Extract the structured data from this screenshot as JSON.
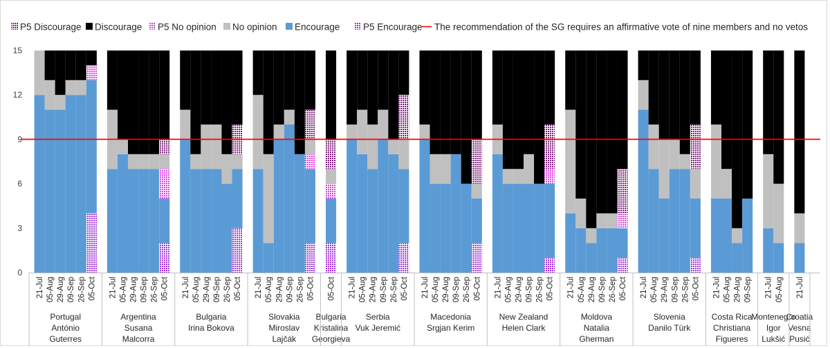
{
  "chart_data": {
    "type": "bar",
    "stacked": true,
    "ylim": [
      0,
      15
    ],
    "yticks": [
      0,
      3,
      6,
      9,
      12,
      15
    ],
    "grid": false,
    "legend_position": "top",
    "threshold": {
      "value": 9,
      "label": "The recommendation of the SG requires an affirmative vote of nine members and no vetos",
      "color": "#ff0000"
    },
    "series": [
      {
        "key": "p5_encourage",
        "name": "P5 Encourage",
        "color": "#a033d6",
        "pattern": true
      },
      {
        "key": "encourage",
        "name": "Encourage",
        "color": "#5b9bd5",
        "pattern": false
      },
      {
        "key": "p5_no_opinion",
        "name": "P5 No opinion",
        "color": "#e03de0",
        "pattern": true
      },
      {
        "key": "no_opinion",
        "name": "No opinion",
        "color": "#c0c0c0",
        "pattern": false
      },
      {
        "key": "p5_discourage",
        "name": "P5 Discourage",
        "color": "#7a1f7a",
        "pattern": true
      },
      {
        "key": "discourage",
        "name": "Discourage",
        "color": "#000000",
        "pattern": false
      }
    ],
    "legend_order": [
      "p5_discourage",
      "discourage",
      "p5_no_opinion",
      "no_opinion",
      "encourage",
      "p5_encourage"
    ],
    "groups": [
      {
        "label": [
          "Portugal",
          "António",
          "Guterres"
        ],
        "polls": [
          {
            "date": "21-Jul",
            "values": [
              0,
              12,
              0,
              3,
              0,
              0
            ]
          },
          {
            "date": "05-Aug",
            "values": [
              0,
              11,
              0,
              2,
              0,
              2
            ]
          },
          {
            "date": "29-Aug",
            "values": [
              0,
              11,
              0,
              1,
              0,
              3
            ]
          },
          {
            "date": "09-Sep",
            "values": [
              0,
              12,
              0,
              1,
              0,
              2
            ]
          },
          {
            "date": "26-Sep",
            "values": [
              0,
              12,
              0,
              1,
              0,
              2
            ]
          },
          {
            "date": "05-Oct",
            "values": [
              4,
              9,
              1,
              0,
              0,
              1
            ]
          }
        ]
      },
      {
        "label": [
          "Argentina",
          "Susana",
          "Malcorra"
        ],
        "polls": [
          {
            "date": "21-Jul",
            "values": [
              0,
              7,
              0,
              4,
              0,
              4
            ]
          },
          {
            "date": "05-Aug",
            "values": [
              0,
              8,
              0,
              1,
              0,
              6
            ]
          },
          {
            "date": "29-Aug",
            "values": [
              0,
              7,
              0,
              1,
              0,
              7
            ]
          },
          {
            "date": "09-Sep",
            "values": [
              0,
              7,
              0,
              1,
              0,
              7
            ]
          },
          {
            "date": "26-Sep",
            "values": [
              0,
              7,
              0,
              1,
              0,
              7
            ]
          },
          {
            "date": "05-Oct",
            "values": [
              2,
              3,
              2,
              1,
              1,
              6
            ]
          }
        ]
      },
      {
        "label": [
          "Bulgaria",
          "Irina Bokova"
        ],
        "polls": [
          {
            "date": "21-Jul",
            "values": [
              0,
              9,
              0,
              2,
              0,
              4
            ]
          },
          {
            "date": "05-Aug",
            "values": [
              0,
              7,
              0,
              1,
              0,
              7
            ]
          },
          {
            "date": "29-Aug",
            "values": [
              0,
              7,
              0,
              3,
              0,
              5
            ]
          },
          {
            "date": "09-Sep",
            "values": [
              0,
              7,
              0,
              3,
              0,
              5
            ]
          },
          {
            "date": "26-Sep",
            "values": [
              0,
              6,
              0,
              2,
              0,
              7
            ]
          },
          {
            "date": "05-Oct",
            "values": [
              3,
              4,
              0,
              1,
              2,
              5
            ]
          }
        ]
      },
      {
        "label": [
          "Slovakia",
          "Miroslav",
          "Lajčák"
        ],
        "polls": [
          {
            "date": "21-Jul",
            "values": [
              0,
              7,
              0,
              5,
              0,
              3
            ]
          },
          {
            "date": "05-Aug",
            "values": [
              0,
              2,
              0,
              6,
              0,
              7
            ]
          },
          {
            "date": "29-Aug",
            "values": [
              0,
              9,
              0,
              1,
              0,
              5
            ]
          },
          {
            "date": "09-Sep",
            "values": [
              0,
              10,
              0,
              1,
              0,
              4
            ]
          },
          {
            "date": "26-Sep",
            "values": [
              0,
              8,
              0,
              0,
              0,
              7
            ]
          },
          {
            "date": "05-Oct",
            "values": [
              2,
              5,
              1,
              1,
              2,
              4
            ]
          }
        ]
      },
      {
        "label": [
          "Bulgaria",
          "Kristalina",
          "Georgieva"
        ],
        "polls": [
          {
            "date": "05-Oct",
            "values": [
              2,
              3,
              1,
              1,
              2,
              6
            ]
          }
        ]
      },
      {
        "label": [
          "Serbia",
          "Vuk Jeremić"
        ],
        "polls": [
          {
            "date": "21-Jul",
            "values": [
              0,
              9,
              0,
              1,
              0,
              5
            ]
          },
          {
            "date": "05-Aug",
            "values": [
              0,
              8,
              0,
              3,
              0,
              4
            ]
          },
          {
            "date": "29-Aug",
            "values": [
              0,
              7,
              0,
              3,
              0,
              5
            ]
          },
          {
            "date": "09-Sep",
            "values": [
              0,
              9,
              0,
              2,
              0,
              4
            ]
          },
          {
            "date": "26-Sep",
            "values": [
              0,
              8,
              0,
              1,
              0,
              6
            ]
          },
          {
            "date": "05-Oct",
            "values": [
              2,
              5,
              0,
              2,
              3,
              3
            ]
          }
        ]
      },
      {
        "label": [
          "Macedonia",
          "Srgjan Kerim"
        ],
        "polls": [
          {
            "date": "21-Jul",
            "values": [
              0,
              9,
              0,
              1,
              0,
              5
            ]
          },
          {
            "date": "05-Aug",
            "values": [
              0,
              6,
              0,
              2,
              0,
              7
            ]
          },
          {
            "date": "29-Aug",
            "values": [
              0,
              6,
              0,
              2,
              0,
              7
            ]
          },
          {
            "date": "09-Sep",
            "values": [
              0,
              8,
              0,
              0,
              0,
              7
            ]
          },
          {
            "date": "26-Sep",
            "values": [
              0,
              6,
              0,
              0,
              0,
              9
            ]
          },
          {
            "date": "05-Oct",
            "values": [
              2,
              3,
              0,
              1,
              3,
              6
            ]
          }
        ]
      },
      {
        "label": [
          "New Zealand",
          "Helen Clark"
        ],
        "polls": [
          {
            "date": "21-Jul",
            "values": [
              0,
              8,
              0,
              2,
              0,
              5
            ]
          },
          {
            "date": "05-Aug",
            "values": [
              0,
              6,
              0,
              1,
              0,
              8
            ]
          },
          {
            "date": "29-Aug",
            "values": [
              0,
              6,
              0,
              1,
              0,
              8
            ]
          },
          {
            "date": "09-Sep",
            "values": [
              0,
              6,
              0,
              2,
              0,
              7
            ]
          },
          {
            "date": "26-Sep",
            "values": [
              0,
              6,
              0,
              0,
              0,
              9
            ]
          },
          {
            "date": "05-Oct",
            "values": [
              1,
              5,
              1,
              0,
              3,
              5
            ]
          }
        ]
      },
      {
        "label": [
          "Moldova",
          "Natalia",
          "Gherman"
        ],
        "polls": [
          {
            "date": "21-Jul",
            "values": [
              0,
              4,
              0,
              7,
              0,
              4
            ]
          },
          {
            "date": "05-Aug",
            "values": [
              0,
              3,
              0,
              2,
              0,
              10
            ]
          },
          {
            "date": "29-Aug",
            "values": [
              0,
              2,
              0,
              1,
              0,
              12
            ]
          },
          {
            "date": "09-Sep",
            "values": [
              0,
              3,
              0,
              1,
              0,
              11
            ]
          },
          {
            "date": "26-Sep",
            "values": [
              0,
              3,
              0,
              1,
              0,
              11
            ]
          },
          {
            "date": "05-Oct",
            "values": [
              1,
              2,
              1,
              0,
              3,
              8
            ]
          }
        ]
      },
      {
        "label": [
          "Slovenia",
          "Danilo Türk"
        ],
        "polls": [
          {
            "date": "21-Jul",
            "values": [
              0,
              11,
              0,
              2,
              0,
              2
            ]
          },
          {
            "date": "05-Aug",
            "values": [
              0,
              7,
              0,
              3,
              0,
              5
            ]
          },
          {
            "date": "29-Aug",
            "values": [
              0,
              5,
              0,
              4,
              0,
              6
            ]
          },
          {
            "date": "09-Sep",
            "values": [
              0,
              7,
              0,
              2,
              0,
              6
            ]
          },
          {
            "date": "26-Sep",
            "values": [
              0,
              7,
              0,
              1,
              0,
              7
            ]
          },
          {
            "date": "05-Oct",
            "values": [
              1,
              4,
              0,
              2,
              3,
              5
            ]
          }
        ]
      },
      {
        "label": [
          "Costa Rica",
          "Christiana",
          "Figueres"
        ],
        "polls": [
          {
            "date": "21-Jul",
            "values": [
              0,
              5,
              0,
              5,
              0,
              5
            ]
          },
          {
            "date": "05-Aug",
            "values": [
              0,
              5,
              0,
              2,
              0,
              8
            ]
          },
          {
            "date": "29-Aug",
            "values": [
              0,
              2,
              0,
              1,
              0,
              12
            ]
          },
          {
            "date": "09-Sep",
            "values": [
              0,
              5,
              0,
              0,
              0,
              10
            ]
          }
        ]
      },
      {
        "label": [
          "Montenegro",
          "Igor",
          "Lukšić"
        ],
        "polls": [
          {
            "date": "21-Jul",
            "values": [
              0,
              3,
              0,
              5,
              0,
              7
            ]
          },
          {
            "date": "05-Aug",
            "values": [
              0,
              2,
              0,
              4,
              0,
              9
            ]
          }
        ]
      },
      {
        "label": [
          "Croatia",
          "Vesna",
          "Pusić"
        ],
        "polls": [
          {
            "date": "21-Jul",
            "values": [
              0,
              2,
              0,
              2,
              0,
              11
            ]
          }
        ]
      }
    ]
  }
}
